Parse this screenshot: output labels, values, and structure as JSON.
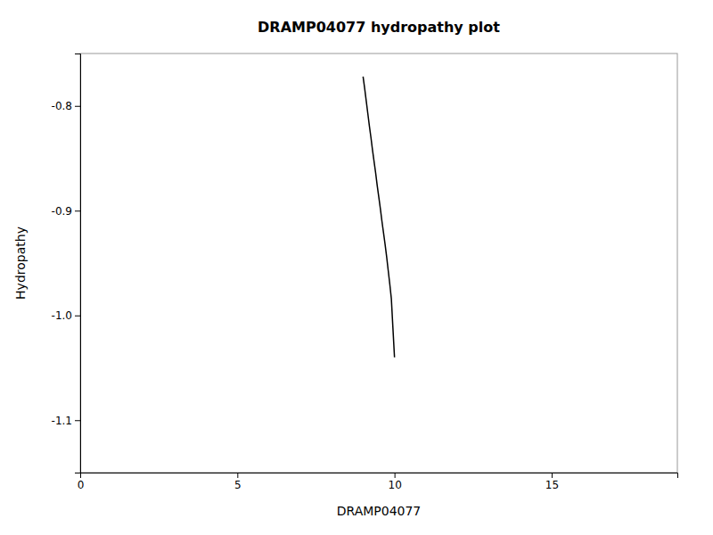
{
  "chart_data": {
    "type": "line",
    "title": "DRAMP04077 hydropathy plot",
    "xlabel": "DRAMP04077",
    "ylabel": "Hydropathy",
    "x": [
      9.0,
      9.05,
      9.1,
      9.15,
      9.2,
      9.25,
      9.3,
      9.35,
      9.4,
      9.45,
      9.5,
      9.55,
      9.6,
      9.65,
      9.7,
      9.75,
      9.8,
      9.85,
      9.9,
      9.95,
      10.0
    ],
    "values": [
      -0.772,
      -0.783,
      -0.795,
      -0.807,
      -0.819,
      -0.83,
      -0.842,
      -0.853,
      -0.864,
      -0.876,
      -0.887,
      -0.898,
      -0.91,
      -0.921,
      -0.932,
      -0.944,
      -0.957,
      -0.97,
      -0.984,
      -1.012,
      -1.04
    ],
    "color": "#000000",
    "xlim": [
      0,
      19
    ],
    "ylim": [
      -1.15,
      -0.75
    ],
    "xticks": [
      0,
      5,
      10,
      15
    ],
    "yticks": [
      -1.1,
      {
        "value": -1.0,
        "label": "-1.0"
      },
      -0.9,
      -0.8
    ]
  }
}
